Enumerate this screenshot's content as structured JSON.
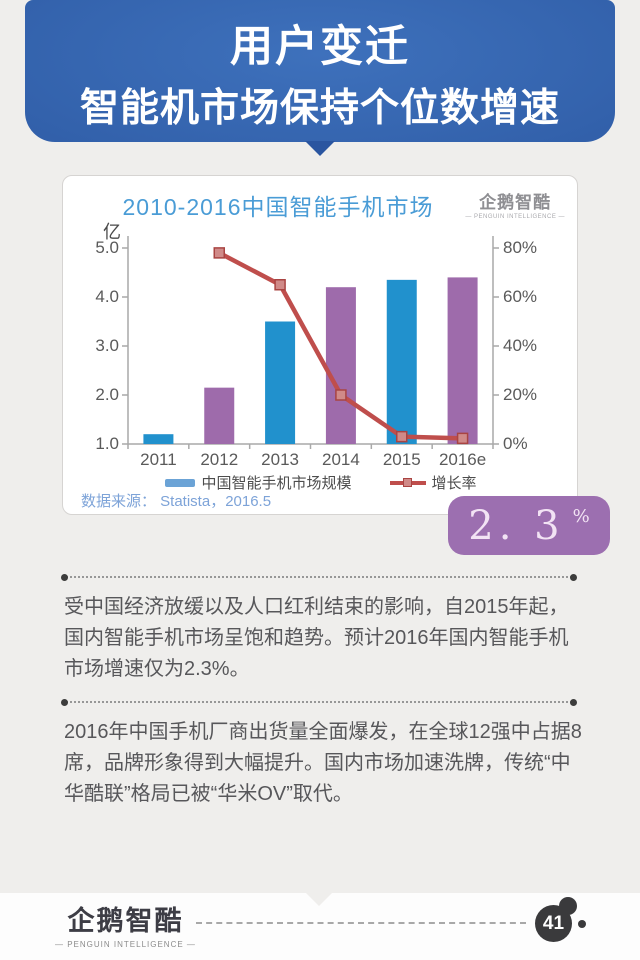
{
  "page": {
    "background": "#efeeec"
  },
  "header": {
    "line1": "用户变迁",
    "line2": "智能机市场保持个位数增速",
    "bg_color": "#315fa9"
  },
  "chart_card": {
    "logo_text": "企鹅智酷",
    "logo_sub": "— PENGUIN INTELLIGENCE —"
  },
  "chart_data": {
    "type": "bar+line",
    "title": "2010-2016中国智能手机市场",
    "unit_label": "亿",
    "categories": [
      "2011",
      "2012",
      "2013",
      "2014",
      "2015",
      "2016e"
    ],
    "series": [
      {
        "name": "中国智能手机市场规模",
        "type": "bar",
        "axis": "left",
        "values": [
          1.2,
          2.15,
          3.5,
          4.2,
          4.35,
          4.4
        ],
        "colors": [
          "#2191cd",
          "#9e6bab",
          "#2191cd",
          "#9e6bab",
          "#2191cd",
          "#9e6bab"
        ],
        "legend_swatch": "#6ba3d6"
      },
      {
        "name": "增长率",
        "type": "line",
        "axis": "right",
        "values": [
          null,
          78,
          65,
          20,
          3,
          2.3
        ],
        "color": "#bf4e4c",
        "marker_fill": "#d08a88",
        "marker_stroke": "#a94442"
      }
    ],
    "left_axis": {
      "min": 1.0,
      "max": 5.0,
      "tick_values": [
        5,
        4,
        3,
        2,
        1
      ],
      "tick_labels": [
        "5.0",
        "4.0",
        "3.0",
        "2.0",
        "1.0"
      ]
    },
    "right_axis": {
      "min": 0,
      "max": 80,
      "tick_values": [
        80,
        60,
        40,
        20,
        0
      ],
      "tick_labels": [
        "80%",
        "60%",
        "40%",
        "20%",
        "0%"
      ]
    },
    "legend_position": "bottom",
    "grid": false,
    "source": "数据来源： Statista，2016.5"
  },
  "stat_badge": {
    "value": "2. 3",
    "unit": "%",
    "color": "#9c6fb0"
  },
  "paragraphs": {
    "p1": "受中国经济放缓以及人口红利结束的影响，自2015年起，国内智能手机市场呈饱和趋势。预计2016年国内智能手机市场增速仅为2.3%。",
    "p2": "2016年中国手机厂商出货量全面爆发，在全球12强中占据8席，品牌形象得到大幅提升。国内市场加速洗牌，传统“中华酷联”格局已被“华米OV”取代。"
  },
  "footer": {
    "logo_text": "企鹅智酷",
    "logo_sub": "— PENGUIN INTELLIGENCE —",
    "page_number": "41"
  }
}
